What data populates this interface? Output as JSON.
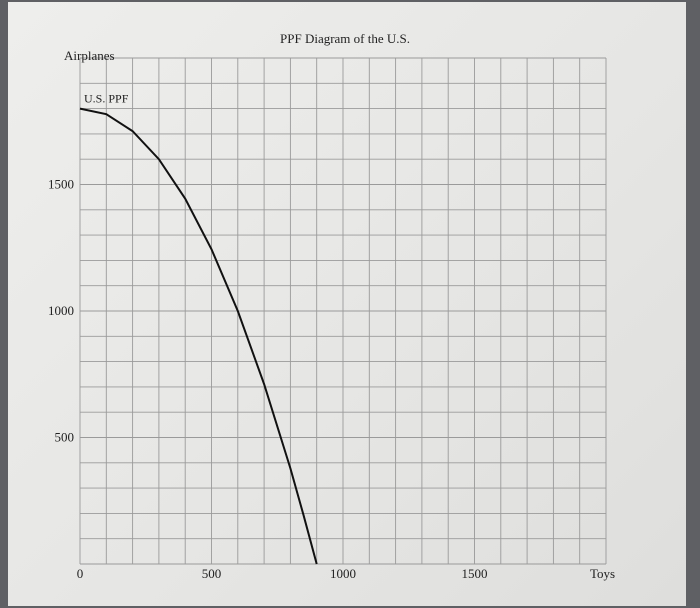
{
  "chart_data": {
    "type": "line",
    "title": "PPF Diagram of the U.S.",
    "xlabel": "Toys",
    "ylabel": "Airplanes",
    "xlim": [
      0,
      2000
    ],
    "ylim": [
      0,
      2000
    ],
    "x_ticks": [
      0,
      500,
      1000,
      1500
    ],
    "y_ticks": [
      500,
      1000,
      1500
    ],
    "x_tick_labels": [
      "0",
      "500",
      "1000",
      "1500"
    ],
    "y_tick_labels": [
      "500",
      "1000",
      "1500"
    ],
    "grid": true,
    "grid_step": 100,
    "series": [
      {
        "name": "U.S. PPF",
        "x": [
          0,
          100,
          200,
          300,
          400,
          500,
          600,
          700,
          800,
          850,
          900
        ],
        "y": [
          1800,
          1778,
          1711,
          1600,
          1444,
          1244,
          1000,
          711,
          378,
          193,
          0
        ]
      }
    ]
  }
}
